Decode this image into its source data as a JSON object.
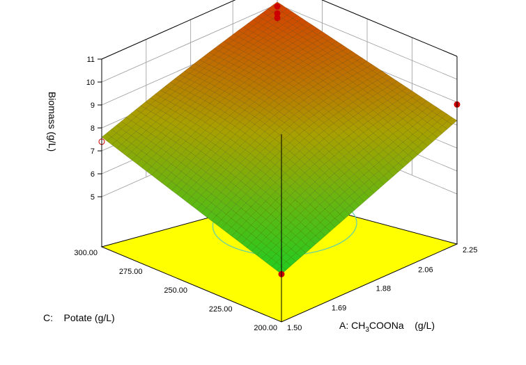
{
  "chart_data": {
    "type": "surface3d",
    "title": "",
    "zlabel": "Biomass (g/L)",
    "xlabel": {
      "prefix": "A: CH",
      "sub1": "3",
      "mid": "COONa",
      "suffix": "    (g/L)"
    },
    "ylabel": "C:    Potate (g/L)",
    "x_ticks": [
      "1.50",
      "1.69",
      "1.88",
      "2.06",
      "2.25"
    ],
    "y_ticks": [
      "200.00",
      "225.00",
      "250.00",
      "275.00",
      "300.00"
    ],
    "z_ticks": [
      "5",
      "6",
      "7",
      "8",
      "9",
      "10",
      "11"
    ],
    "xlim": [
      1.5,
      2.25
    ],
    "ylim": [
      200,
      300
    ],
    "zlim": [
      5,
      11
    ],
    "surface_corners": {
      "x_min_y_min": 4.9,
      "x_max_y_min": 8.2,
      "x_min_y_max": 7.6,
      "x_max_y_max": 10.1
    },
    "surface_peak": {
      "x": 2.05,
      "y": 290,
      "z": 10.1
    },
    "design_points": [
      {
        "x": 1.5,
        "y": 200,
        "z": 4.9
      },
      {
        "x": 2.25,
        "y": 200,
        "z": 8.9
      },
      {
        "x": 1.5,
        "y": 300,
        "z": 7.4
      },
      {
        "x": 2.25,
        "y": 300,
        "z": 9.9
      },
      {
        "x": 2.25,
        "y": 300,
        "z": 9.6
      },
      {
        "x": 2.25,
        "y": 300,
        "z": 9.4
      }
    ],
    "surface_color_low": "#22cc22",
    "surface_color_mid": "#a8a000",
    "surface_color_high": "#d44000",
    "floor_color": "#ffff00",
    "point_color": "#cc0000"
  }
}
